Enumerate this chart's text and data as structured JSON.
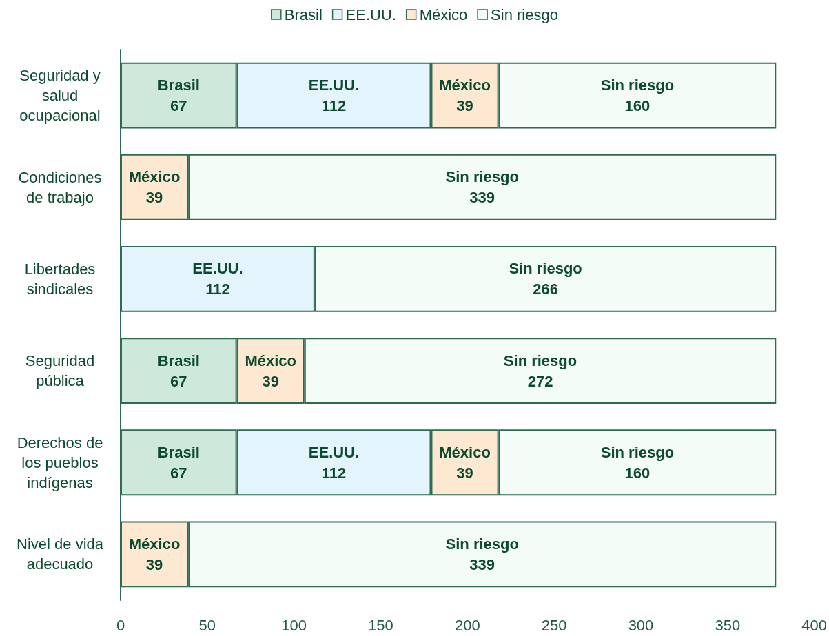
{
  "chart_data": {
    "type": "bar",
    "orientation": "horizontal",
    "stacked": true,
    "categories": [
      "Seguridad y\nsalud\nocupacional",
      "Condiciones\nde trabajo",
      "Libertades\nsindicales",
      "Seguridad\npública",
      "Derechos de\nlos pueblos\nindígenas",
      "Nivel de vida\nadecuado"
    ],
    "series": [
      {
        "name": "Brasil",
        "color": "#cfe8dc",
        "values": [
          67,
          null,
          null,
          67,
          67,
          null
        ]
      },
      {
        "name": "EE.UU.",
        "color": "#e3f4fc",
        "values": [
          112,
          null,
          112,
          null,
          112,
          null
        ]
      },
      {
        "name": "México",
        "color": "#fde9d1",
        "values": [
          39,
          39,
          null,
          39,
          39,
          39
        ]
      },
      {
        "name": "Sin riesgo",
        "color": "#f4fcf8",
        "values": [
          160,
          339,
          266,
          272,
          160,
          339
        ]
      }
    ],
    "xlim": [
      0,
      400
    ],
    "xticks": [
      0,
      50,
      100,
      150,
      200,
      250,
      300,
      350,
      400
    ],
    "grid": false,
    "legend": "top",
    "data_labels": true
  }
}
